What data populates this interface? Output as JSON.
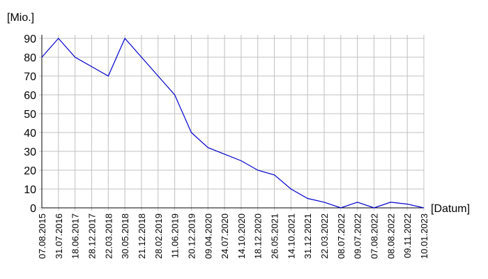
{
  "chart_data": {
    "type": "line",
    "y_label": "[Mio.]",
    "x_label": "[Datum]",
    "categories": [
      "07.08.2015",
      "31.07.2016",
      "18.06.2017",
      "28.12.2017",
      "22.03.2018",
      "30.05.2018",
      "21.12.2018",
      "28.02.2019",
      "11.06.2019",
      "20.12.2019",
      "09.04.2020",
      "24.07.2020",
      "14.10.2020",
      "18.12.2020",
      "26.05.2021",
      "14.10.2021",
      "31.12.2021",
      "22.03.2022",
      "08.07.2022",
      "09.07.2022",
      "07.08.2022",
      "08.08.2022",
      "09.11.2022",
      "10.01.2023"
    ],
    "series": [
      {
        "name": null,
        "color": "#0000cc",
        "values": [
          80,
          90,
          80,
          75,
          70,
          90,
          80,
          70,
          60,
          40,
          32,
          28.5,
          25,
          20,
          17.5,
          10,
          5,
          3,
          0,
          3,
          0,
          3,
          2,
          0
        ]
      }
    ],
    "ylim": [
      0,
      90
    ],
    "yticks": [
      0,
      10,
      20,
      30,
      40,
      50,
      60,
      70,
      80,
      90
    ],
    "grid": true
  }
}
